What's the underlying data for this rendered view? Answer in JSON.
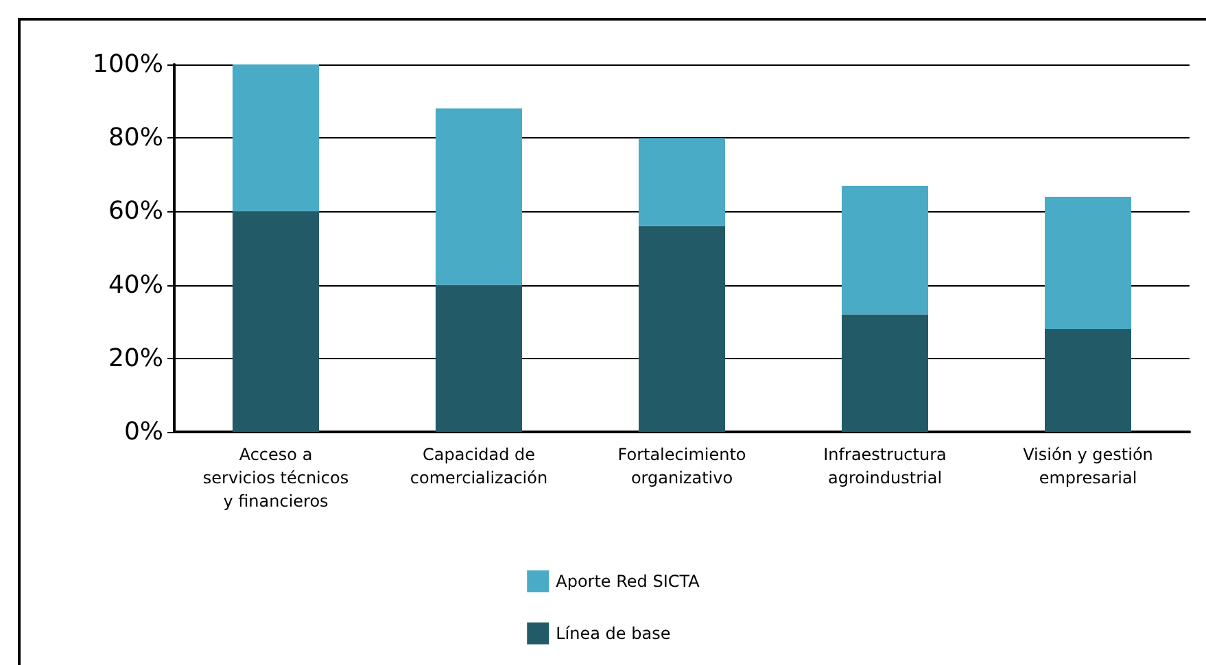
{
  "chart_data": {
    "type": "bar",
    "stacked": true,
    "categories": [
      "Acceso a\nservicios técnicos\ny financieros",
      "Capacidad de\ncomercialización",
      "Fortalecimiento\norganizativo",
      "Infraestructura\nagroindustrial",
      "Visión y gestión\nempresarial"
    ],
    "series": [
      {
        "name": "Línea de base",
        "color": "#225a68",
        "values": [
          60,
          40,
          56,
          32,
          28
        ]
      },
      {
        "name": "Aporte Red SICTA",
        "color": "#4aabc6",
        "values": [
          40,
          48,
          24,
          35,
          36
        ]
      }
    ],
    "ylim": [
      0,
      100
    ],
    "yticks": [
      {
        "value": 0,
        "label": "0%"
      },
      {
        "value": 20,
        "label": "20%"
      },
      {
        "value": 40,
        "label": "40%"
      },
      {
        "value": 60,
        "label": "60%"
      },
      {
        "value": 80,
        "label": "80%"
      },
      {
        "value": 100,
        "label": "100%"
      }
    ],
    "grid": "y",
    "legend": "bottom"
  }
}
